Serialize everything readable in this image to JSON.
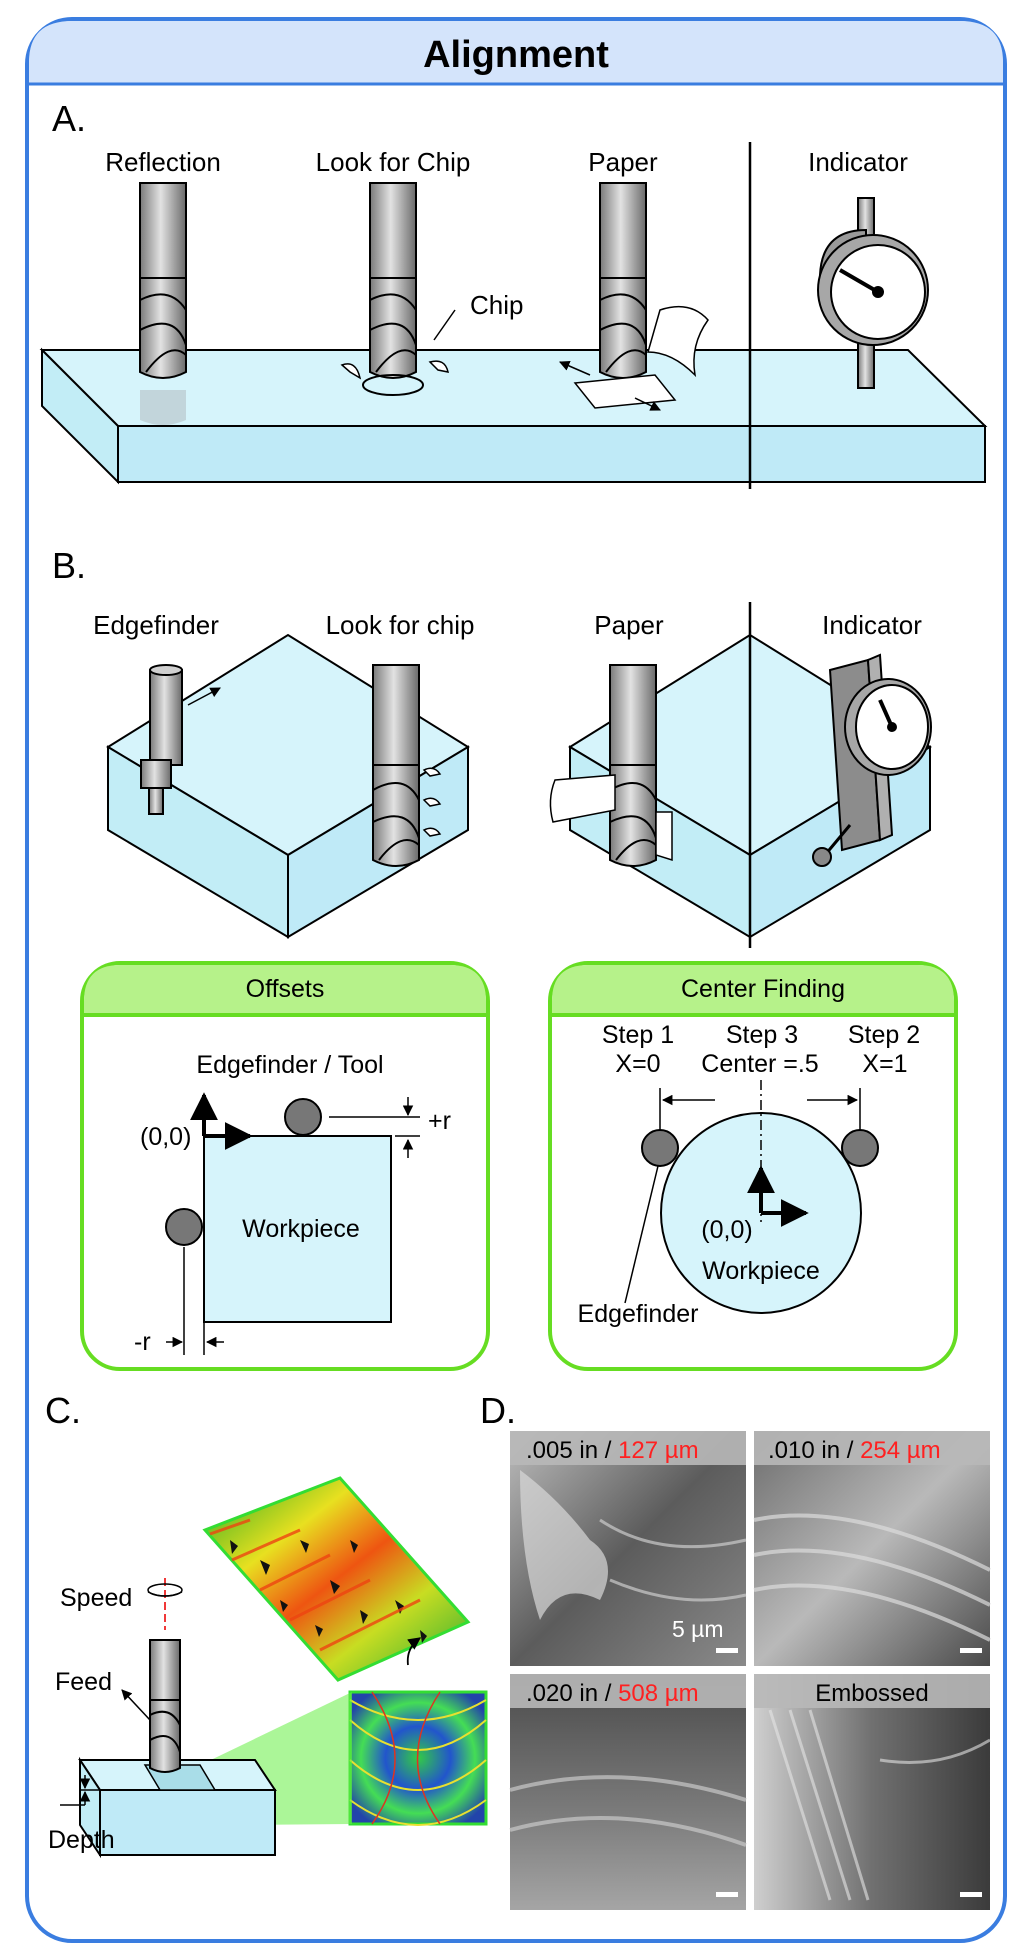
{
  "title": "Alignment",
  "panelA": {
    "letter": "A.",
    "labels": [
      "Reflection",
      "Look for Chip",
      "Paper",
      "Indicator"
    ],
    "chip_label": "Chip"
  },
  "panelB": {
    "letter": "B.",
    "labels": [
      "Edgefinder",
      "Look for chip",
      "Paper",
      "Indicator"
    ]
  },
  "offsets": {
    "title": "Offsets",
    "tool_label": "Edgefinder / Tool",
    "origin": "(0,0)",
    "plus_r": "+r",
    "minus_r": "-r",
    "workpiece": "Workpiece"
  },
  "center_finding": {
    "title": "Center Finding",
    "step1": "Step 1",
    "step1_val": "X=0",
    "step3": "Step 3",
    "step3_val": "Center =.5",
    "step2": "Step 2",
    "step2_val": "X=1",
    "origin": "(0,0)",
    "workpiece": "Workpiece",
    "edgefinder": "Edgefinder"
  },
  "panelC": {
    "letter": "C.",
    "speed": "Speed",
    "feed": "Feed",
    "depth": "Depth"
  },
  "panelD": {
    "letter": "D.",
    "images": [
      {
        "label_in": ".005 in / ",
        "label_um": "127 µm"
      },
      {
        "label_in": ".010 in / ",
        "label_um": "254 µm"
      },
      {
        "label_in": ".020 in / ",
        "label_um": "508 µm"
      },
      {
        "label_in": "Embossed",
        "label_um": ""
      }
    ],
    "scale_label": "5 µm"
  },
  "colors": {
    "frame": "#3a7de0",
    "title_bg": "#d4e4fb",
    "workpiece": "#d6f4fb",
    "box_border": "#66dd22",
    "box_header": "#b6f28a",
    "metric_red": "#ff2020"
  }
}
